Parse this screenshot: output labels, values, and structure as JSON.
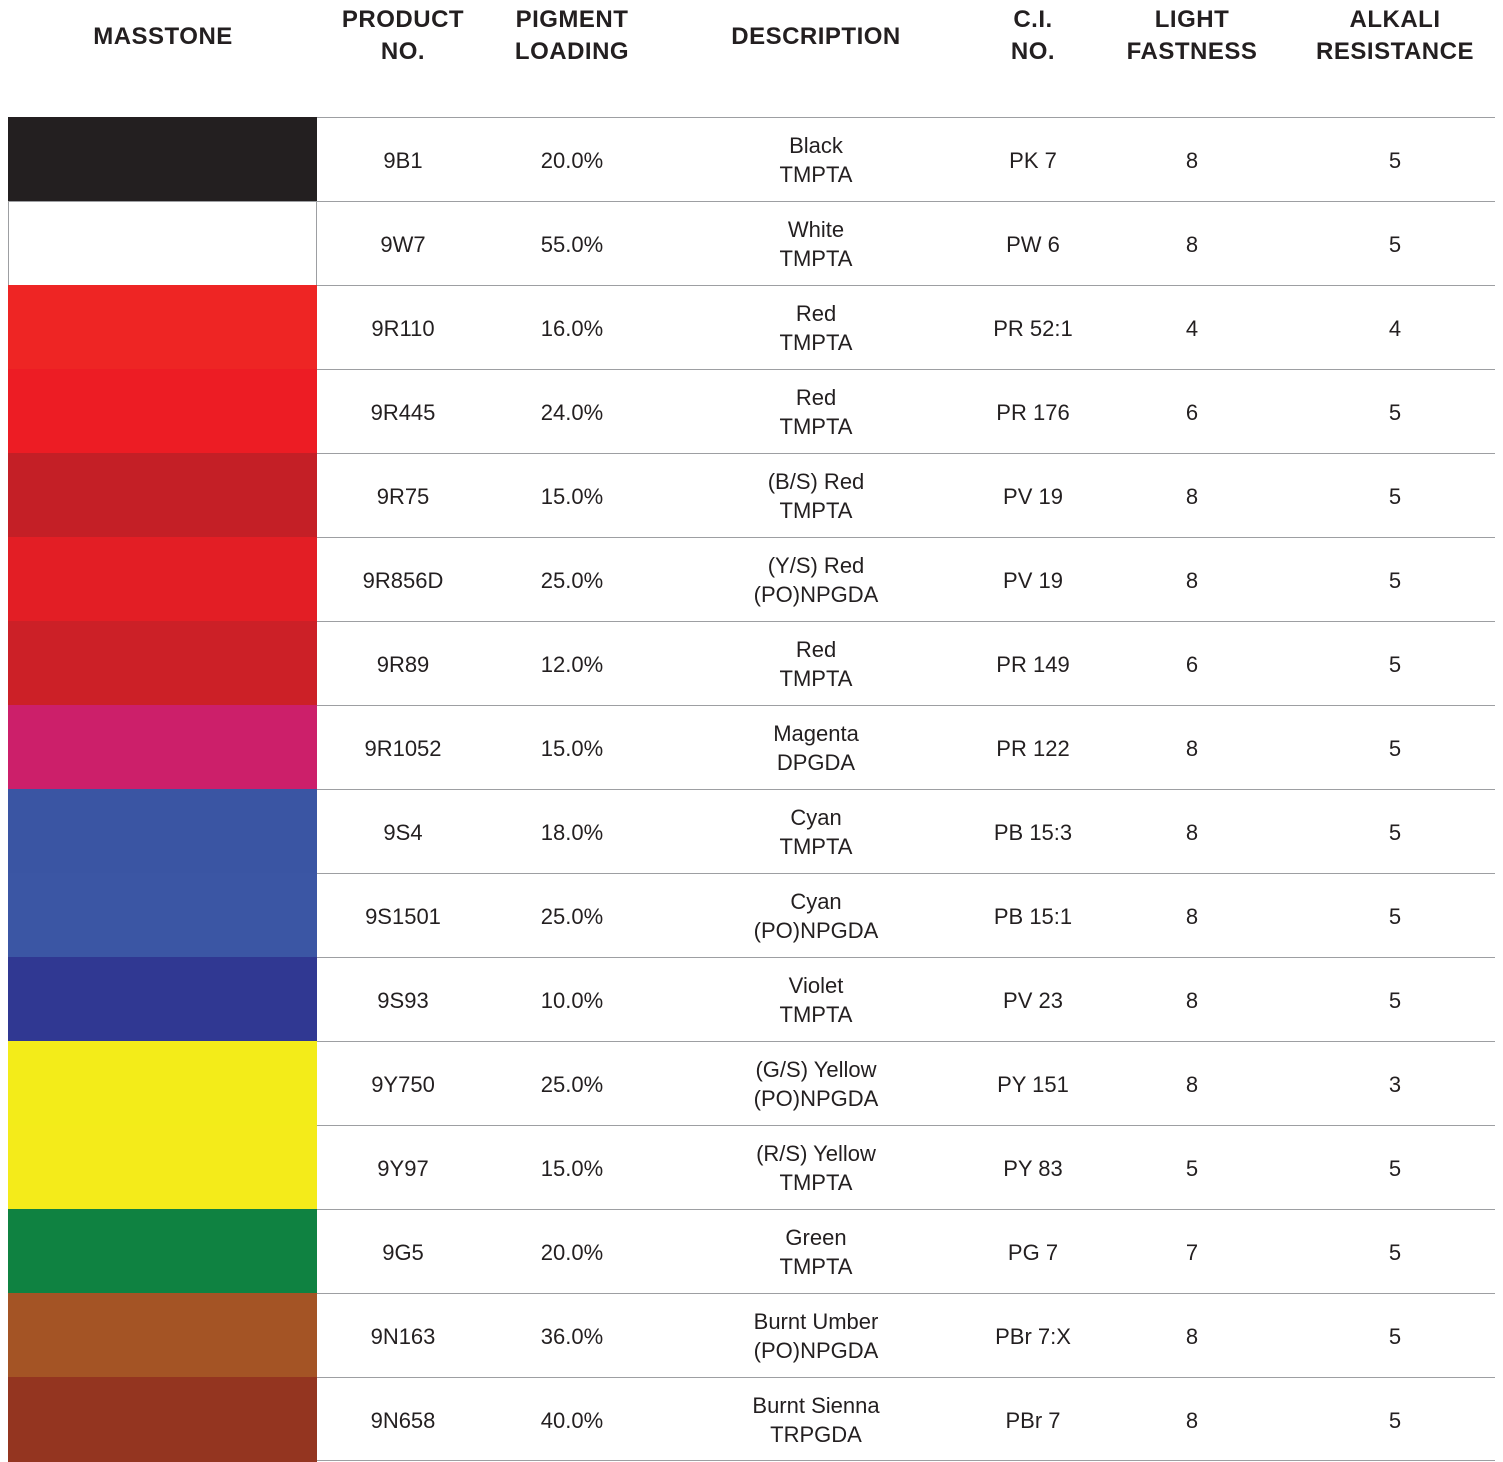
{
  "table": {
    "header": [
      [
        "MASSTONE"
      ],
      [
        "PRODUCT",
        "NO."
      ],
      [
        "PIGMENT",
        "LOADING"
      ],
      [
        "DESCRIPTION"
      ],
      [
        "C.I.",
        "NO."
      ],
      [
        "LIGHT",
        "FASTNESS"
      ],
      [
        "ALKALI",
        "RESISTANCE"
      ]
    ],
    "rows": [
      {
        "color": "#231f20",
        "product": "9B1",
        "loading": "20.0%",
        "description": [
          "Black",
          "TMPTA"
        ],
        "ci": "PK 7",
        "light": 8,
        "alkali": 5
      },
      {
        "color": "#ffffff",
        "product": "9W7",
        "loading": "55.0%",
        "description": [
          "White",
          "TMPTA"
        ],
        "ci": "PW 6",
        "light": 8,
        "alkali": 5
      },
      {
        "color": "#ee2524",
        "product": "9R110",
        "loading": "16.0%",
        "description": [
          "Red",
          "TMPTA"
        ],
        "ci": "PR 52:1",
        "light": 4,
        "alkali": 4
      },
      {
        "color": "#ed1c24",
        "product": "9R445",
        "loading": "24.0%",
        "description": [
          "Red",
          "TMPTA"
        ],
        "ci": "PR 176",
        "light": 6,
        "alkali": 5
      },
      {
        "color": "#c41f26",
        "product": "9R75",
        "loading": "15.0%",
        "description": [
          "(B/S) Red",
          "TMPTA"
        ],
        "ci": "PV 19",
        "light": 8,
        "alkali": 5
      },
      {
        "color": "#e31e25",
        "product": "9R856D",
        "loading": "25.0%",
        "description": [
          "(Y/S) Red",
          "(PO)NPGDA"
        ],
        "ci": "PV 19",
        "light": 8,
        "alkali": 5
      },
      {
        "color": "#cc2027",
        "product": "9R89",
        "loading": "12.0%",
        "description": [
          "Red",
          "TMPTA"
        ],
        "ci": "PR 149",
        "light": 6,
        "alkali": 5
      },
      {
        "color": "#cc1f6a",
        "product": "9R1052",
        "loading": "15.0%",
        "description": [
          "Magenta",
          "DPGDA"
        ],
        "ci": "PR 122",
        "light": 8,
        "alkali": 5
      },
      {
        "color": "#3a55a3",
        "product": "9S4",
        "loading": "18.0%",
        "description": [
          "Cyan",
          "TMPTA"
        ],
        "ci": "PB 15:3",
        "light": 8,
        "alkali": 5
      },
      {
        "color": "#3b56a4",
        "product": "9S1501",
        "loading": "25.0%",
        "description": [
          "Cyan",
          "(PO)NPGDA"
        ],
        "ci": "PB 15:1",
        "light": 8,
        "alkali": 5
      },
      {
        "color": "#303892",
        "product": "9S93",
        "loading": "10.0%",
        "description": [
          "Violet",
          "TMPTA"
        ],
        "ci": "PV 23",
        "light": 8,
        "alkali": 5
      },
      {
        "color": "#f3ec19",
        "product": "9Y750",
        "loading": "25.0%",
        "description": [
          "(G/S) Yellow",
          "(PO)NPGDA"
        ],
        "ci": "PY 151",
        "light": 8,
        "alkali": 3
      },
      {
        "color": "#f4eb1a",
        "product": "9Y97",
        "loading": "15.0%",
        "description": [
          "(R/S) Yellow",
          "TMPTA"
        ],
        "ci": "PY 83",
        "light": 5,
        "alkali": 5
      },
      {
        "color": "#0f8241",
        "product": "9G5",
        "loading": "20.0%",
        "description": [
          "Green",
          "TMPTA"
        ],
        "ci": "PG 7",
        "light": 7,
        "alkali": 5
      },
      {
        "color": "#a45425",
        "product": "9N163",
        "loading": "36.0%",
        "description": [
          "Burnt Umber",
          "(PO)NPGDA"
        ],
        "ci": "PBr 7:X",
        "light": 8,
        "alkali": 5
      },
      {
        "color": "#943520",
        "product": "9N658",
        "loading": "40.0%",
        "description": [
          "Burnt Sienna",
          "TRPGDA"
        ],
        "ci": "PBr 7",
        "light": 8,
        "alkali": 5
      }
    ]
  }
}
